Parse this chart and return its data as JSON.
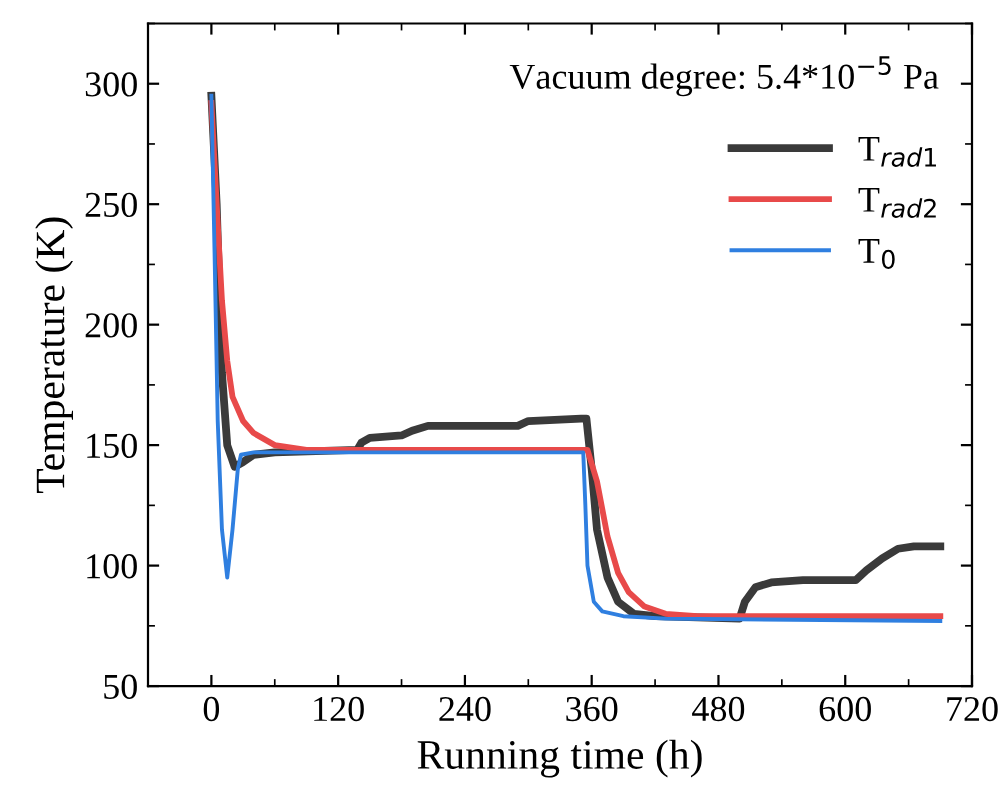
{
  "chart_data": {
    "type": "line",
    "xlabel": "Running time (h)",
    "ylabel": "Temperature (K)",
    "annotations": [
      "Vacuum degree: 5.4*10$^{−5}$ Pa"
    ],
    "xlim": [
      -60,
      720
    ],
    "xticks": [
      0,
      120,
      240,
      360,
      480,
      600,
      720
    ],
    "ylim": [
      50,
      325
    ],
    "yticks": [
      50,
      100,
      150,
      200,
      250,
      300
    ],
    "grid": false,
    "legend": "top right",
    "marker": "none",
    "line_style": "solid",
    "series": [
      {
        "name": "T$_{rad1}$",
        "color": "#3a3a3a",
        "x": [
          0,
          5,
          10,
          15,
          22,
          30,
          40,
          60,
          138,
          142,
          150,
          180,
          190,
          205,
          240,
          290,
          300,
          350,
          355,
          360,
          365,
          375,
          385,
          400,
          420,
          500,
          505,
          515,
          530,
          560,
          610,
          620,
          635,
          650,
          665,
          690
        ],
        "values": [
          295,
          250,
          180,
          150,
          141,
          143,
          146,
          147,
          148,
          151,
          153,
          154,
          156,
          158,
          158,
          158,
          160,
          161,
          161,
          140,
          115,
          95,
          85,
          80,
          79,
          78,
          85,
          91,
          93,
          94,
          94,
          98,
          103,
          107,
          108,
          108
        ]
      },
      {
        "name": "T$_{rad2}$",
        "color": "#e84a4a",
        "x": [
          0,
          5,
          10,
          15,
          20,
          30,
          40,
          60,
          90,
          150,
          350,
          356,
          365,
          375,
          385,
          395,
          410,
          430,
          460,
          690
        ],
        "values": [
          292,
          250,
          210,
          185,
          170,
          160,
          155,
          150,
          148,
          148,
          148,
          148,
          135,
          112,
          97,
          89,
          83,
          80,
          79,
          79
        ]
      },
      {
        "name": "T$_{0}$",
        "color": "#2f7fe0",
        "x": [
          0,
          3,
          6,
          10,
          15,
          20,
          25,
          28,
          40,
          200,
          352,
          354,
          356,
          358,
          362,
          370,
          390,
          430,
          690
        ],
        "values": [
          295,
          230,
          160,
          115,
          95,
          115,
          140,
          146,
          147,
          147,
          147,
          125,
          100,
          95,
          85,
          81,
          79,
          78,
          77
        ]
      }
    ]
  }
}
